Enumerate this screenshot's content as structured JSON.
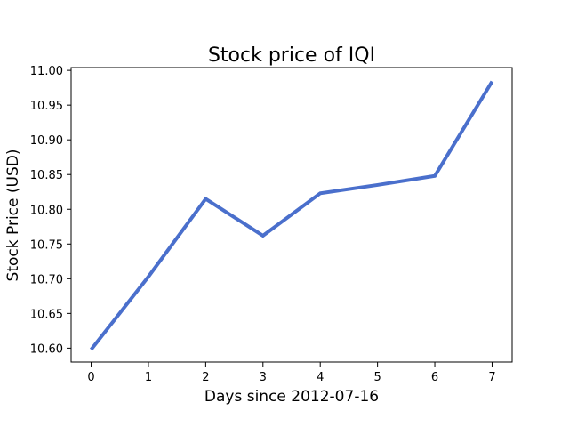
{
  "chart_data": {
    "type": "line",
    "title": "Stock price of IQI",
    "xlabel": "Days since 2012-07-16",
    "ylabel": "Stock Price (USD)",
    "x": [
      0,
      1,
      2,
      3,
      4,
      5,
      6,
      7
    ],
    "series": [
      {
        "values": [
          10.598,
          10.703,
          10.815,
          10.762,
          10.823,
          10.835,
          10.848,
          10.984
        ],
        "color": "#4a6fcc"
      }
    ],
    "xlim": [
      -0.35,
      7.35
    ],
    "ylim": [
      10.58,
      11.004
    ],
    "xticks": [
      0,
      1,
      2,
      3,
      4,
      5,
      6,
      7
    ],
    "xtick_labels": [
      "0",
      "1",
      "2",
      "3",
      "4",
      "5",
      "6",
      "7"
    ],
    "yticks": [
      10.6,
      10.65,
      10.7,
      10.75,
      10.8,
      10.85,
      10.9,
      10.95,
      11.0
    ],
    "ytick_labels": [
      "10.60",
      "10.65",
      "10.70",
      "10.75",
      "10.80",
      "10.85",
      "10.90",
      "10.95",
      "11.00"
    ],
    "grid": false,
    "legend": false
  }
}
